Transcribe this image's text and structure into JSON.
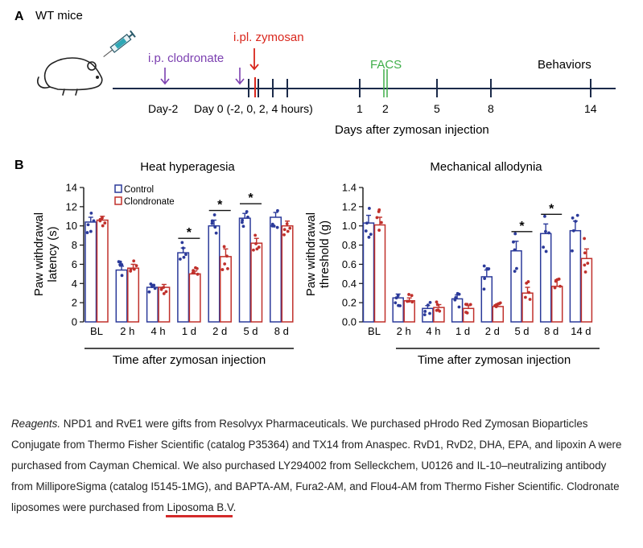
{
  "panel_a": {
    "panel_letter": "A",
    "title": "WT mice",
    "clodronate_label": "i.p. clodronate",
    "zymosan_label": "i.pl. zymosan",
    "facs_label": "FACS",
    "behaviors_label": "Behaviors",
    "day_minus2_label": "Day-2",
    "day0_label": "Day 0 (-2, 0, 2, 4 hours)",
    "day1_label": "1",
    "day2_label": "2",
    "day5_label": "5",
    "day8_label": "8",
    "day14_label": "14",
    "axis_caption": "Days after zymosan injection",
    "colors": {
      "clodronate": "#7b3fb0",
      "zymosan": "#d9261c",
      "facs": "#3fae49",
      "axis": "#1b2a4a"
    }
  },
  "panel_b": {
    "panel_letter": "B",
    "legend": {
      "control": "Control",
      "clodronate": "Clondronate"
    },
    "colors": {
      "control": "#2b3a9a",
      "clodronate": "#c0302b"
    }
  },
  "chart_data": [
    {
      "type": "bar",
      "title": "Heat hyperagesia",
      "ylabel_line1": "Paw withdrawal",
      "ylabel_line2": "latency (s)",
      "xlabel": "Time after zymosan injection",
      "categories": [
        "BL",
        "2 h",
        "4 h",
        "1 d",
        "2 d",
        "5 d",
        "8 d"
      ],
      "ylim": [
        0,
        14
      ],
      "yticks": [
        "0",
        "2",
        "4",
        "6",
        "8",
        "10",
        "12",
        "14"
      ],
      "significance": [
        "",
        "",
        "",
        "*",
        "*",
        "*",
        ""
      ],
      "series": [
        {
          "name": "Control",
          "values": [
            10.4,
            5.4,
            3.6,
            7.2,
            10.0,
            10.8,
            10.9
          ],
          "errors": [
            0.5,
            0.4,
            0.3,
            0.5,
            0.6,
            0.5,
            0.5
          ]
        },
        {
          "name": "Clondronate",
          "values": [
            10.6,
            5.6,
            3.6,
            5.0,
            6.8,
            8.2,
            10.0
          ],
          "errors": [
            0.4,
            0.4,
            0.3,
            0.3,
            0.8,
            0.5,
            0.5
          ]
        }
      ]
    },
    {
      "type": "bar",
      "title": "Mechanical allodynia",
      "ylabel_line1": "Paw withdrawal",
      "ylabel_line2": "threshold (g)",
      "xlabel": "Time after zymosan injection",
      "categories": [
        "BL",
        "2 h",
        "4 h",
        "1 d",
        "2 d",
        "5 d",
        "8 d",
        "14 d"
      ],
      "ylim": [
        0,
        1.4
      ],
      "yticks": [
        "0.0",
        "0.2",
        "0.4",
        "0.6",
        "0.8",
        "1.0",
        "1.2",
        "1.4"
      ],
      "significance": [
        "",
        "",
        "",
        "",
        "",
        "*",
        "*",
        ""
      ],
      "series": [
        {
          "name": "Control",
          "values": [
            1.03,
            0.25,
            0.14,
            0.24,
            0.47,
            0.74,
            0.92,
            0.95
          ],
          "errors": [
            0.08,
            0.04,
            0.03,
            0.04,
            0.07,
            0.1,
            0.1,
            0.1
          ]
        },
        {
          "name": "Clondronate",
          "values": [
            1.01,
            0.22,
            0.15,
            0.14,
            0.16,
            0.3,
            0.37,
            0.66
          ],
          "errors": [
            0.08,
            0.03,
            0.03,
            0.03,
            0.02,
            0.06,
            0.07,
            0.1
          ]
        }
      ]
    }
  ],
  "reagents_text": {
    "label": "Reagents.",
    "body_line1": " NPD1 and RvE1 were gifts from Resolvyx Pharmaceuticals. We purchased pHrodo Red Zymosan Bioparticles",
    "body_line2": "Conjugate from Thermo Fisher Scientific (catalog P35364) and TX14 from Anaspec. RvD1, RvD2, DHA, EPA, and lipoxin A were",
    "body_line3": "purchased from Cayman Chemical. We also purchased LY294002 from Selleckchem, U0126 and IL-10–neutralizing antibody",
    "body_line4": "from MilliporeSigma (catalog I5145-1MG), and BAPTA-AM, Fura2-AM, and Flou4-AM from Thermo Fisher Scientific. Clodronate",
    "body_line5_prefix": "liposomes were purchased from ",
    "link": "Liposoma B.V",
    "body_line5_suffix": "."
  }
}
